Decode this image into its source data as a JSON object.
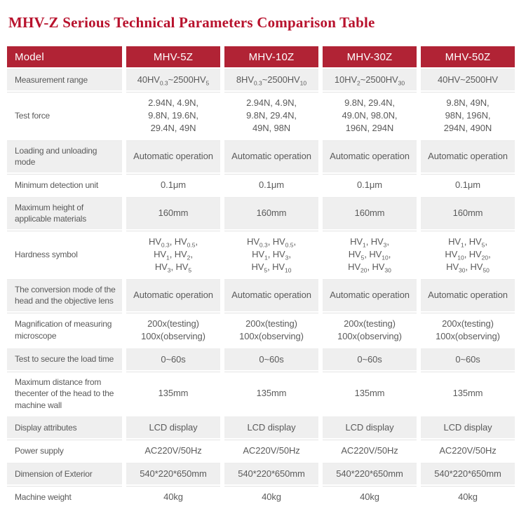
{
  "page": {
    "title": "MHV-Z Serious Technical Parameters Comparison Table"
  },
  "colors": {
    "title_red": "#b8122d",
    "header_bg": "#b12335",
    "header_text": "#ffffff",
    "row_alt_bg": "#efefef",
    "body_text": "#5b5b5b"
  },
  "table": {
    "header": [
      "Model",
      "MHV-5Z",
      "MHV-10Z",
      "MHV-30Z",
      "MHV-50Z"
    ],
    "rows": [
      {
        "label": "Measurement range",
        "values": [
          "40HV_{0.3}~2500HV_{5}",
          "8HV_{0.3}~2500HV_{10}",
          "10HV_{2}~2500HV_{30}",
          "40HV~2500HV"
        ]
      },
      {
        "label": "Test force",
        "values": [
          [
            "2.94N, 4.9N,",
            "9.8N, 19.6N,",
            "29.4N, 49N"
          ],
          [
            "2.94N, 4.9N,",
            "9.8N, 29.4N,",
            "49N, 98N"
          ],
          [
            "9.8N, 29.4N,",
            "49.0N, 98.0N,",
            "196N, 294N"
          ],
          [
            "9.8N, 49N,",
            "98N, 196N,",
            "294N, 490N"
          ]
        ]
      },
      {
        "label": "Loading and unloading mode",
        "values": [
          "Automatic operation",
          "Automatic operation",
          "Automatic operation",
          "Automatic operation"
        ]
      },
      {
        "label": "Minimum detection unit",
        "values": [
          "0.1μm",
          "0.1μm",
          "0.1μm",
          "0.1μm"
        ]
      },
      {
        "label": "Maximum height of applicable materials",
        "values": [
          "160mm",
          "160mm",
          "160mm",
          "160mm"
        ]
      },
      {
        "label": "Hardness symbol",
        "values": [
          [
            "HV_{0.3}, HV_{0.5},",
            "HV_{1}, HV_{2},",
            "HV_{3}, HV_{5}"
          ],
          [
            "HV_{0.3}, HV_{0.5},",
            "HV_{1}, HV_{3},",
            "HV_{5}, HV_{10}"
          ],
          [
            "HV_{1}, HV_{3},",
            "HV_{5}, HV_{10},",
            "HV_{20}, HV_{30}"
          ],
          [
            "HV_{1}, HV_{5},",
            "HV_{10}, HV_{20},",
            "HV_{30}, HV_{50}"
          ]
        ]
      },
      {
        "label": "The conversion mode of the head and the objective lens",
        "values": [
          "Automatic operation",
          "Automatic operation",
          "Automatic operation",
          "Automatic operation"
        ]
      },
      {
        "label": "Magnification of measuring microscope",
        "values": [
          [
            "200x(testing)",
            "100x(observing)"
          ],
          [
            "200x(testing)",
            "100x(observing)"
          ],
          [
            "200x(testing)",
            "100x(observing)"
          ],
          [
            "200x(testing)",
            "100x(observing)"
          ]
        ]
      },
      {
        "label": "Test to secure the load time",
        "values": [
          "0~60s",
          "0~60s",
          "0~60s",
          "0~60s"
        ]
      },
      {
        "label": "Maximum distance from thecenter of the head to the machine wall",
        "values": [
          "135mm",
          "135mm",
          "135mm",
          "135mm"
        ]
      },
      {
        "label": "Display attributes",
        "values": [
          "LCD display",
          "LCD display",
          "LCD display",
          "LCD display"
        ]
      },
      {
        "label": "Power supply",
        "values": [
          "AC220V/50Hz",
          "AC220V/50Hz",
          "AC220V/50Hz",
          "AC220V/50Hz"
        ]
      },
      {
        "label": "Dimension of Exterior",
        "values": [
          "540*220*650mm",
          "540*220*650mm",
          "540*220*650mm",
          "540*220*650mm"
        ]
      },
      {
        "label": "Machine weight",
        "values": [
          "40kg",
          "40kg",
          "40kg",
          "40kg"
        ]
      }
    ]
  }
}
